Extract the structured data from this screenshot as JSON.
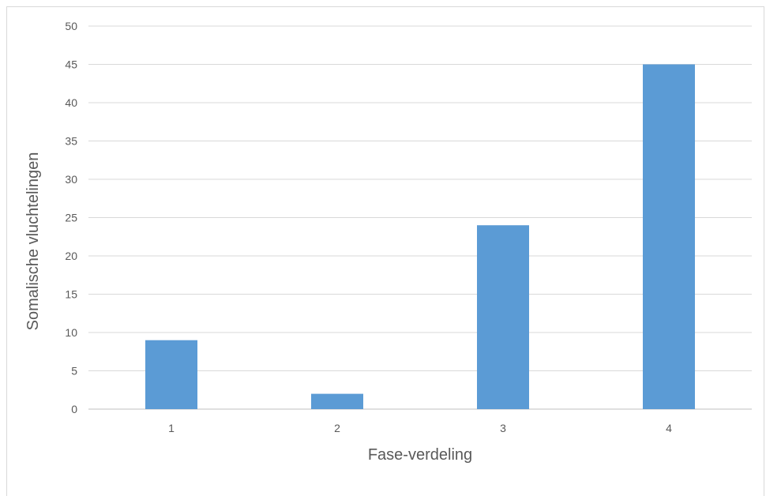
{
  "chart_data": {
    "type": "bar",
    "title": "",
    "xlabel": "Fase-verdeling",
    "ylabel": "Somalische vluchtelingen",
    "categories": [
      "1",
      "2",
      "3",
      "4"
    ],
    "values": [
      9,
      2,
      24,
      45
    ],
    "ylim": [
      0,
      50
    ],
    "yticks": [
      0,
      5,
      10,
      15,
      20,
      25,
      30,
      35,
      40,
      45,
      50
    ],
    "grid": true,
    "bar_color": "#5b9bd5",
    "grid_color": "#d9d9d9",
    "text_color": "#595959"
  }
}
